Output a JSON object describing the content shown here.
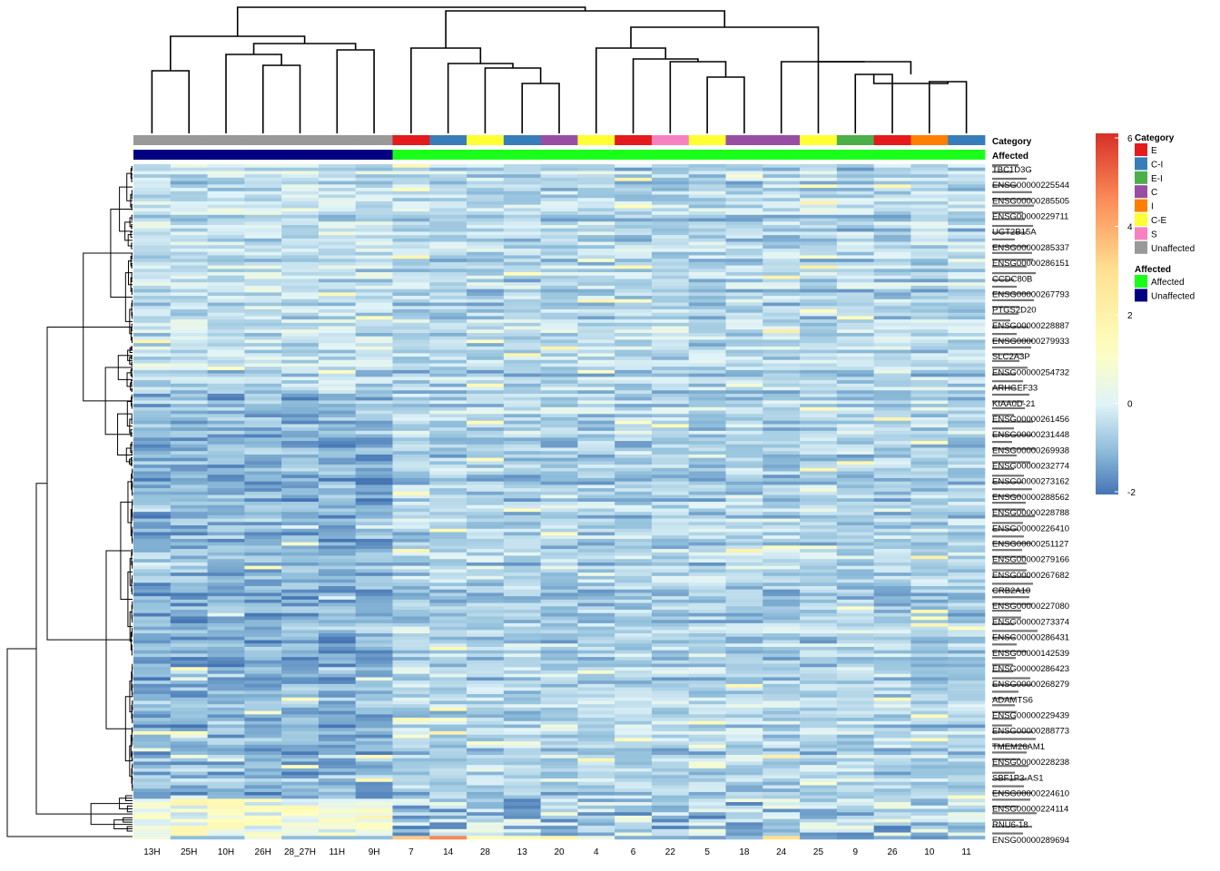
{
  "chart_data": {
    "type": "heatmap",
    "title": "",
    "columns": [
      "13H",
      "25H",
      "10H",
      "26H",
      "28_27H",
      "11H",
      "9H",
      "7",
      "14",
      "28",
      "13",
      "20",
      "4",
      "6",
      "22",
      "5",
      "18",
      "24",
      "25",
      "9",
      "26",
      "10",
      "11"
    ],
    "annotation_rows": [
      "Category",
      "Affected"
    ],
    "column_category": [
      "Unaffected",
      "Unaffected",
      "Unaffected",
      "Unaffected",
      "Unaffected",
      "Unaffected",
      "Unaffected",
      "E",
      "C-I",
      "C-E",
      "C-I",
      "C",
      "C-E",
      "E",
      "S",
      "C-E",
      "C",
      "C",
      "C-E",
      "E-I",
      "E",
      "I",
      "C-I"
    ],
    "column_affected": [
      "Unaffected",
      "Unaffected",
      "Unaffected",
      "Unaffected",
      "Unaffected",
      "Unaffected",
      "Unaffected",
      "Affected",
      "Affected",
      "Affected",
      "Affected",
      "Affected",
      "Affected",
      "Affected",
      "Affected",
      "Affected",
      "Affected",
      "Affected",
      "Affected",
      "Affected",
      "Affected",
      "Affected",
      "Affected"
    ],
    "row_labels_visible": [
      "TBC1D3G",
      "ENSG00000225544",
      "ENSG00000285505",
      "ENSG00000229711",
      "UGT2B15A",
      "ENSG00000285337",
      "ENSG00000286151",
      "CCDC80B",
      "ENSG00000267793",
      "PTGS2D20",
      "ENSG00000228887",
      "ENSG00000279933",
      "SLC2A3P",
      "ENSG00000254732",
      "ARHGEF33",
      "KIAA0D-21",
      "ENSG00000261456",
      "ENSG00000231448",
      "ENSG00000269938",
      "ENSG00000232774",
      "ENSG00000273162",
      "ENSG00000288562",
      "ENSG00000228788",
      "ENSG00000226410",
      "ENSG00000251127",
      "ENSG00000279166",
      "ENSG00000267682",
      "CRB2A10",
      "ENSG00000227080",
      "ENSG00000273374",
      "ENSG00000286431",
      "ENSG00000142539",
      "ENSG00000286423",
      "ENSG00000268279",
      "ADAMTS6",
      "ENSG00000229439",
      "ENSG00000288773",
      "TMEM26AM1",
      "ENSG00000228238",
      "SBF1P3-AS1",
      "ENSG00000224610",
      "ENSG00000224114",
      "RNU6-18",
      "ENSG00000289694"
    ],
    "color_scale": {
      "min": -2,
      "max": 6,
      "ticks": [
        -2,
        0,
        2,
        4,
        6
      ],
      "low_color": "#4575b4",
      "mid_color": "#ffffbf",
      "high_color": "#d73027"
    },
    "legend": {
      "category_title": "Category",
      "category": [
        {
          "name": "E",
          "color": "#e41a1c"
        },
        {
          "name": "C-I",
          "color": "#377eb8"
        },
        {
          "name": "E-I",
          "color": "#4daf4a"
        },
        {
          "name": "C",
          "color": "#984ea3"
        },
        {
          "name": "I",
          "color": "#ff7f00"
        },
        {
          "name": "C-E",
          "color": "#ffff33"
        },
        {
          "name": "S",
          "color": "#f781bf"
        },
        {
          "name": "Unaffected",
          "color": "#999999"
        }
      ],
      "affected_title": "Affected",
      "affected": [
        {
          "name": "Affected",
          "color": "#1aff1a"
        },
        {
          "name": "Unaffected",
          "color": "#000080"
        }
      ]
    },
    "special_rows": {
      "bright_rows_fraction_start": 0.93,
      "last_row_values": [
        0.6,
        -1,
        -1,
        0.6,
        -1,
        -1,
        -1,
        3.4,
        4.6,
        1.4,
        1.4,
        1.8,
        0.4,
        -1.2,
        -1.2,
        -1.4,
        -1,
        3,
        -1.4,
        -1.6,
        -1.2,
        -1.6,
        -1.2
      ]
    }
  }
}
